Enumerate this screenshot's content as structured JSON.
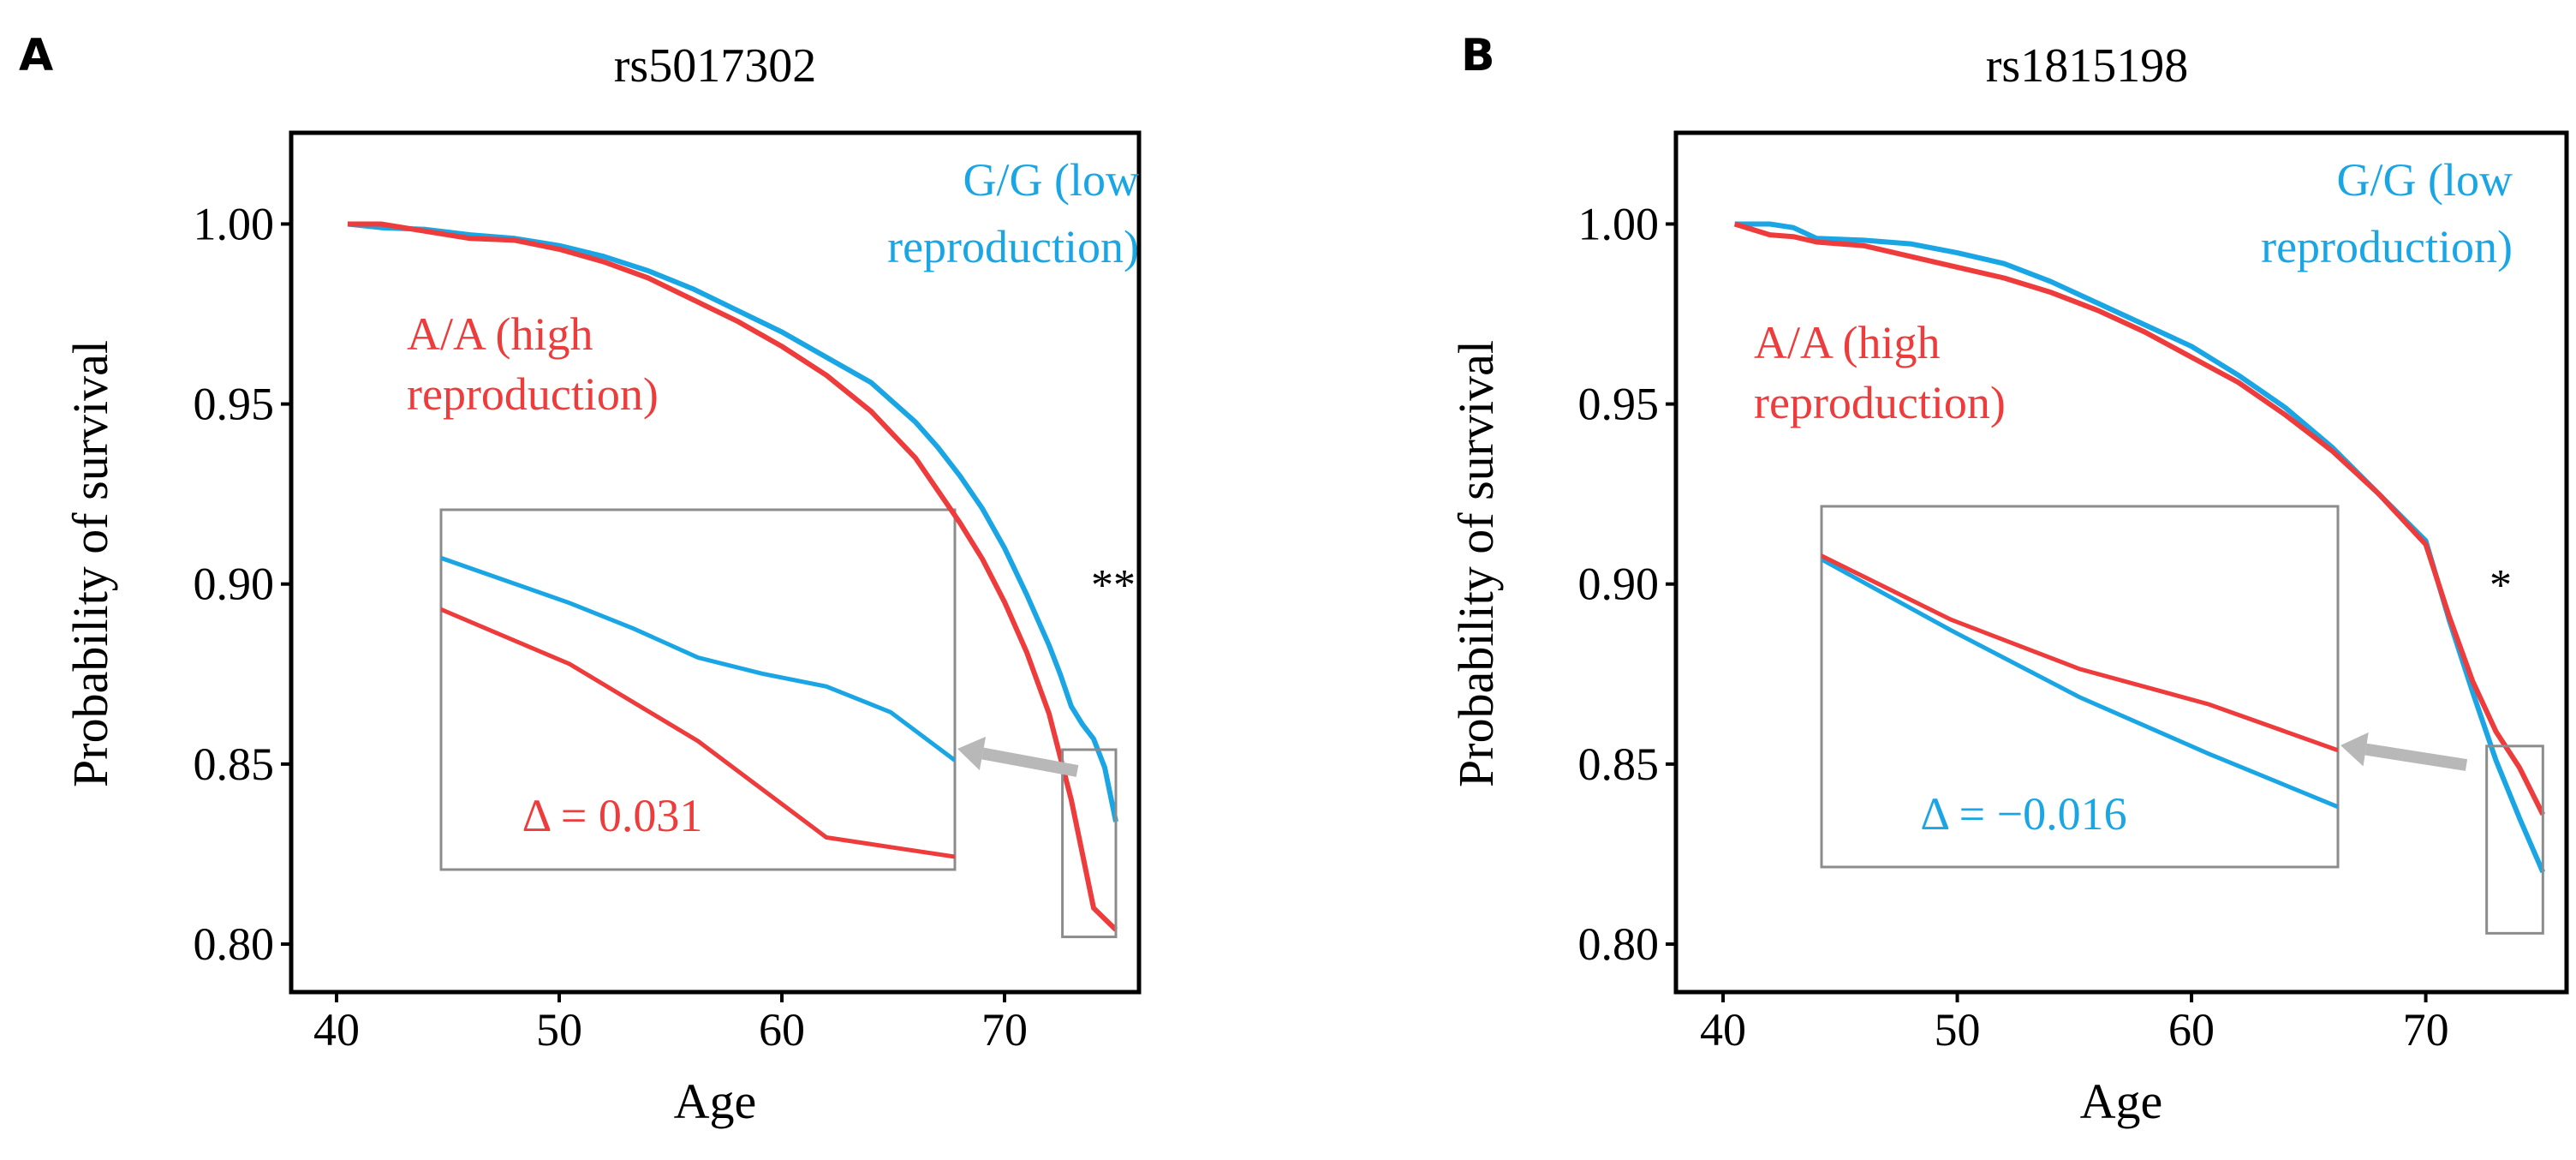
{
  "colors": {
    "red": "#ee3b3b",
    "blue": "#1aa6e4",
    "arrow": "#b8b8b8",
    "box": "#8c8c8c"
  },
  "chart_data": [
    {
      "type": "line",
      "panel": "A",
      "title": "rs5017302",
      "xlabel": "Age",
      "ylabel": "Probability of survival",
      "xlim": [
        38.5,
        75.5
      ],
      "ylim": [
        0.79,
        1.022
      ],
      "xticks": [
        40,
        50,
        60,
        70
      ],
      "xtick_labels": [
        "40",
        "50",
        "60",
        "70"
      ],
      "yticks": [
        0.8,
        0.85,
        0.9,
        0.95,
        1.0
      ],
      "ytick_labels": [
        "0.80",
        "0.85",
        "0.90",
        "0.95",
        "1.00"
      ],
      "series": [
        {
          "name": "G/G (low reproduction)",
          "label_lines": [
            "G/G (low",
            "reproduction)"
          ],
          "color": "blue",
          "x": [
            40.5,
            42,
            44,
            46,
            48,
            50,
            52,
            54,
            56,
            58,
            60,
            62,
            64,
            66,
            67,
            68,
            69,
            70,
            71,
            72,
            72.5,
            73,
            73.5,
            74,
            74.5,
            75
          ],
          "y": [
            1.0,
            0.999,
            0.9985,
            0.997,
            0.996,
            0.994,
            0.991,
            0.987,
            0.982,
            0.976,
            0.97,
            0.963,
            0.956,
            0.945,
            0.938,
            0.93,
            0.921,
            0.91,
            0.897,
            0.883,
            0.875,
            0.866,
            0.861,
            0.857,
            0.849,
            0.834
          ]
        },
        {
          "name": "A/A (high reproduction)",
          "label_lines": [
            "A/A (high",
            "reproduction)"
          ],
          "color": "red",
          "x": [
            40.5,
            42,
            44,
            46,
            48,
            50,
            52,
            54,
            56,
            58,
            60,
            62,
            64,
            66,
            67,
            68,
            69,
            70,
            71,
            72,
            72.5,
            73,
            73.5,
            74,
            74.5,
            75
          ],
          "y": [
            1.0,
            1.0,
            0.998,
            0.996,
            0.9955,
            0.993,
            0.9895,
            0.985,
            0.979,
            0.973,
            0.966,
            0.958,
            0.948,
            0.935,
            0.926,
            0.917,
            0.907,
            0.895,
            0.881,
            0.864,
            0.852,
            0.84,
            0.825,
            0.81,
            0.807,
            0.804
          ]
        }
      ],
      "significance": "**",
      "zoom_region": {
        "xlim": [
          72.6,
          75
        ],
        "ylim": [
          0.802,
          0.854
        ]
      },
      "delta_text": "Δ = 0.031",
      "delta_color": "red"
    },
    {
      "type": "line",
      "panel": "B",
      "title": "rs1815198",
      "xlabel": "Age",
      "ylabel": "Probability of survival",
      "xlim": [
        38.5,
        75.5
      ],
      "ylim": [
        0.79,
        1.022
      ],
      "xticks": [
        40,
        50,
        60,
        70
      ],
      "xtick_labels": [
        "40",
        "50",
        "60",
        "70"
      ],
      "yticks": [
        0.8,
        0.85,
        0.9,
        0.95,
        1.0
      ],
      "ytick_labels": [
        "0.80",
        "0.85",
        "0.90",
        "0.95",
        "1.00"
      ],
      "series": [
        {
          "name": "G/G (low reproduction)",
          "label_lines": [
            "G/G (low",
            "reproduction)"
          ],
          "color": "blue",
          "x": [
            40.5,
            42,
            43,
            44,
            46,
            48,
            50,
            52,
            54,
            56,
            58,
            60,
            62,
            64,
            66,
            68,
            70,
            71,
            72,
            73,
            74,
            75
          ],
          "y": [
            1.0,
            1.0,
            0.999,
            0.996,
            0.9955,
            0.9945,
            0.992,
            0.989,
            0.984,
            0.978,
            0.972,
            0.966,
            0.958,
            0.949,
            0.938,
            0.925,
            0.912,
            0.89,
            0.87,
            0.851,
            0.835,
            0.82
          ]
        },
        {
          "name": "A/A (high reproduction)",
          "label_lines": [
            "A/A (high",
            "reproduction)"
          ],
          "color": "red",
          "x": [
            40.5,
            42,
            43,
            44,
            46,
            48,
            50,
            52,
            54,
            56,
            58,
            60,
            62,
            64,
            66,
            68,
            70,
            71,
            72,
            73,
            74,
            75
          ],
          "y": [
            1.0,
            0.997,
            0.9965,
            0.995,
            0.994,
            0.991,
            0.988,
            0.985,
            0.981,
            0.976,
            0.97,
            0.963,
            0.956,
            0.947,
            0.937,
            0.925,
            0.911,
            0.891,
            0.873,
            0.859,
            0.849,
            0.836
          ]
        }
      ],
      "significance": "*",
      "zoom_region": {
        "xlim": [
          72.6,
          75
        ],
        "ylim": [
          0.803,
          0.855
        ]
      },
      "delta_text": "Δ = −0.016",
      "delta_color": "blue"
    }
  ]
}
